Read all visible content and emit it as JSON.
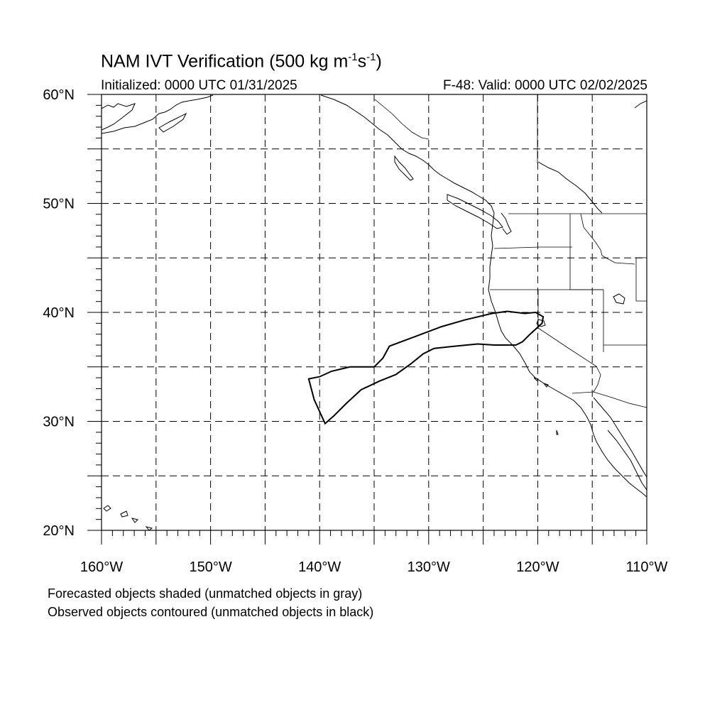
{
  "title": {
    "main": "NAM IVT Verification (500 kg m",
    "sup1": "-1",
    "mid": "s",
    "sup2": "-1",
    "end": ")"
  },
  "initialized": "Initialized: 0000 UTC 01/31/2025",
  "valid": "F-48: Valid: 0000 UTC 02/02/2025",
  "axes": {
    "lon_labels": [
      "160°W",
      "150°W",
      "140°W",
      "130°W",
      "120°W",
      "110°W"
    ],
    "lat_labels": [
      "20°N",
      "30°N",
      "40°N",
      "50°N",
      "60°N"
    ],
    "lon_range": [
      -160,
      -110
    ],
    "lat_range": [
      20,
      60
    ]
  },
  "footnotes": [
    "Forecasted objects shaded (unmatched objects in gray)",
    "Observed objects contoured (unmatched objects in black)"
  ],
  "colors": {
    "grid": "#000000",
    "coast": "#000000",
    "object_contour": "#000000"
  },
  "observed_object": {
    "status": "unmatched",
    "outline_lonlat": [
      [
        -139.5,
        29.8
      ],
      [
        -140.5,
        32.0
      ],
      [
        -141.0,
        33.9
      ],
      [
        -140.0,
        34.1
      ],
      [
        -138.9,
        34.6
      ],
      [
        -137.2,
        35.0
      ],
      [
        -135.0,
        35.0
      ],
      [
        -134.2,
        35.8
      ],
      [
        -133.6,
        36.9
      ],
      [
        -131.2,
        37.8
      ],
      [
        -128.8,
        38.7
      ],
      [
        -126.7,
        39.3
      ],
      [
        -124.2,
        39.9
      ],
      [
        -122.8,
        40.1
      ],
      [
        -121.2,
        39.9
      ],
      [
        -120.2,
        40.0
      ],
      [
        -119.5,
        39.6
      ],
      [
        -119.6,
        39.0
      ],
      [
        -120.7,
        38.0
      ],
      [
        -121.4,
        37.3
      ],
      [
        -122.0,
        37.0
      ],
      [
        -124.0,
        37.0
      ],
      [
        -125.5,
        37.1
      ],
      [
        -127.6,
        36.9
      ],
      [
        -129.5,
        36.7
      ],
      [
        -130.5,
        36.2
      ],
      [
        -131.6,
        35.3
      ],
      [
        -133.0,
        34.3
      ],
      [
        -134.5,
        33.7
      ],
      [
        -136.2,
        32.9
      ],
      [
        -137.6,
        31.6
      ],
      [
        -138.7,
        30.5
      ],
      [
        -139.5,
        29.8
      ]
    ]
  }
}
